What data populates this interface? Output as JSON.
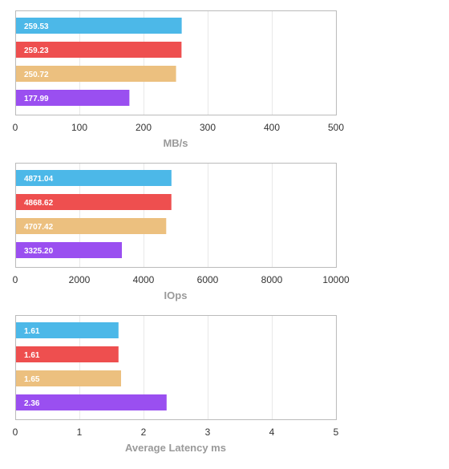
{
  "series_colors": [
    "#4cb8e8",
    "#ee4f4f",
    "#ecc07f",
    "#9a4ff0"
  ],
  "chart_data": [
    {
      "type": "bar",
      "orientation": "horizontal",
      "values": [
        259.53,
        259.23,
        250.72,
        177.99
      ],
      "value_labels": [
        "259.53",
        "259.23",
        "250.72",
        "177.99"
      ],
      "xlabel": "MB/s",
      "xlim": [
        0,
        500
      ],
      "ticks": [
        0,
        100,
        200,
        300,
        400,
        500
      ],
      "tick_labels": [
        "0",
        "100",
        "200",
        "300",
        "400",
        "500"
      ],
      "grid": true
    },
    {
      "type": "bar",
      "orientation": "horizontal",
      "values": [
        4871.04,
        4868.62,
        4707.42,
        3325.2
      ],
      "value_labels": [
        "4871.04",
        "4868.62",
        "4707.42",
        "3325.20"
      ],
      "xlabel": "IOps",
      "xlim": [
        0,
        10000
      ],
      "ticks": [
        0,
        2000,
        4000,
        6000,
        8000,
        10000
      ],
      "tick_labels": [
        "0",
        "2000",
        "4000",
        "6000",
        "8000",
        "10000"
      ],
      "grid": true
    },
    {
      "type": "bar",
      "orientation": "horizontal",
      "values": [
        1.61,
        1.61,
        1.65,
        2.36
      ],
      "value_labels": [
        "1.61",
        "1.61",
        "1.65",
        "2.36"
      ],
      "xlabel": "Average Latency ms",
      "xlim": [
        0,
        5
      ],
      "ticks": [
        0,
        1,
        2,
        3,
        4,
        5
      ],
      "tick_labels": [
        "0",
        "1",
        "2",
        "3",
        "4",
        "5"
      ],
      "grid": true
    }
  ]
}
